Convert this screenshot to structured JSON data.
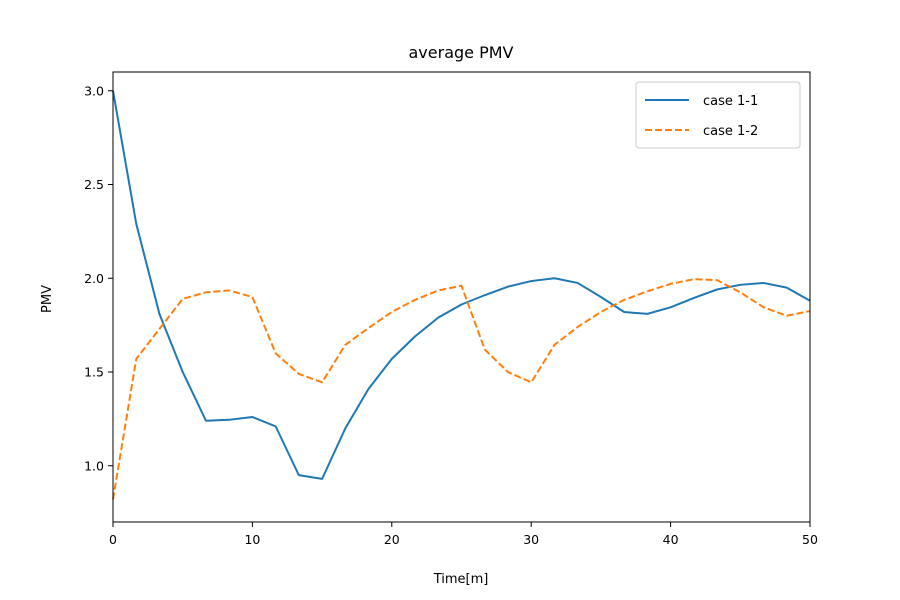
{
  "chart_data": {
    "type": "line",
    "title": "average PMV",
    "xlabel": "Time[m]",
    "ylabel": "PMV",
    "xlim": [
      0,
      50
    ],
    "ylim": [
      0.7,
      3.1
    ],
    "xticks": [
      0,
      10,
      20,
      30,
      40,
      50
    ],
    "xtick_labels": [
      "0",
      "10",
      "20",
      "30",
      "40",
      "50"
    ],
    "yticks": [
      1.0,
      1.5,
      2.0,
      2.5,
      3.0
    ],
    "ytick_labels": [
      "1.0",
      "1.5",
      "2.0",
      "2.5",
      "3.0"
    ],
    "grid": false,
    "legend_position": "top-right",
    "x": [
      0,
      1.67,
      3.33,
      5.0,
      6.67,
      8.33,
      10.0,
      11.67,
      13.33,
      15.0,
      16.67,
      18.33,
      20.0,
      21.67,
      23.33,
      25.0,
      26.67,
      28.33,
      30.0,
      31.67,
      33.33,
      35.0,
      36.67,
      38.33,
      40.0,
      41.67,
      43.33,
      45.0,
      46.67,
      48.33,
      50.0
    ],
    "series": [
      {
        "name": "case 1-1",
        "color": "#1f77b4",
        "dash": "solid",
        "values": [
          3.0,
          2.29,
          1.81,
          1.5,
          1.24,
          1.245,
          1.26,
          1.21,
          0.95,
          0.93,
          1.2,
          1.41,
          1.57,
          1.69,
          1.79,
          1.86,
          1.91,
          1.955,
          1.985,
          2.0,
          1.975,
          1.9,
          1.82,
          1.81,
          1.845,
          1.895,
          1.94,
          1.965,
          1.975,
          1.95,
          1.88
        ]
      },
      {
        "name": "case 1-2",
        "color": "#ff7f0e",
        "dash": "dashed",
        "values": [
          0.82,
          1.57,
          1.73,
          1.89,
          1.925,
          1.935,
          1.9,
          1.6,
          1.49,
          1.445,
          1.645,
          1.735,
          1.82,
          1.885,
          1.935,
          1.96,
          1.62,
          1.5,
          1.445,
          1.645,
          1.74,
          1.82,
          1.885,
          1.93,
          1.97,
          1.995,
          1.99,
          1.925,
          1.845,
          1.8,
          1.825
        ]
      }
    ]
  }
}
